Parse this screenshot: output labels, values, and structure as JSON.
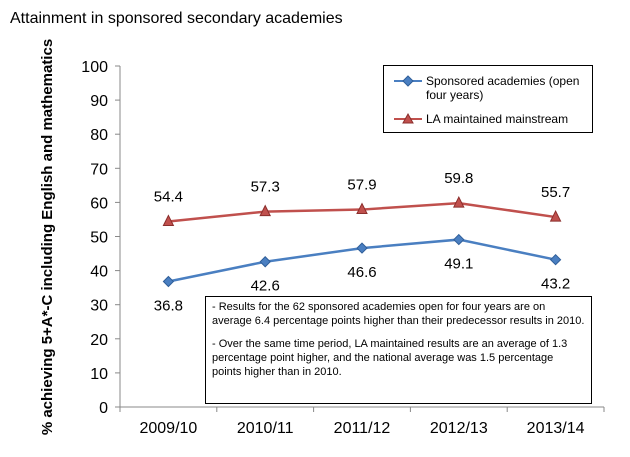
{
  "chart_data": {
    "type": "line",
    "title": "Attainment in sponsored secondary academies",
    "ylabel": "% achieving 5+A*-C including English and mathematics",
    "xlabel": "",
    "categories": [
      "2009/10",
      "2010/11",
      "2011/12",
      "2012/13",
      "2013/14"
    ],
    "ylim": [
      0,
      100
    ],
    "yticks": [
      "0",
      "10",
      "20",
      "30",
      "40",
      "50",
      "60",
      "70",
      "80",
      "90",
      "100"
    ],
    "grid": false,
    "legend_position": "top-right",
    "series": [
      {
        "name": "Sponsored academies (open four years)",
        "values": [
          36.8,
          42.6,
          46.6,
          49.1,
          43.2
        ],
        "labels": [
          "36.8",
          "42.6",
          "46.6",
          "49.1",
          "43.2"
        ],
        "color": "#4a7fc1",
        "marker": "diamond"
      },
      {
        "name": "LA maintained mainstream",
        "values": [
          54.4,
          57.3,
          57.9,
          59.8,
          55.7
        ],
        "labels": [
          "54.4",
          "57.3",
          "57.9",
          "59.8",
          "55.7"
        ],
        "color": "#c0504d",
        "marker": "triangle"
      }
    ],
    "annotations": [
      "- Results for the 62 sponsored academies open for four years are on average 6.4 percentage points higher than their predecessor results in 2010.",
      "- Over the same time period, LA maintained results are an average of 1.3 percentage point higher, and the national average was 1.5 percentage points higher than in 2010."
    ]
  }
}
